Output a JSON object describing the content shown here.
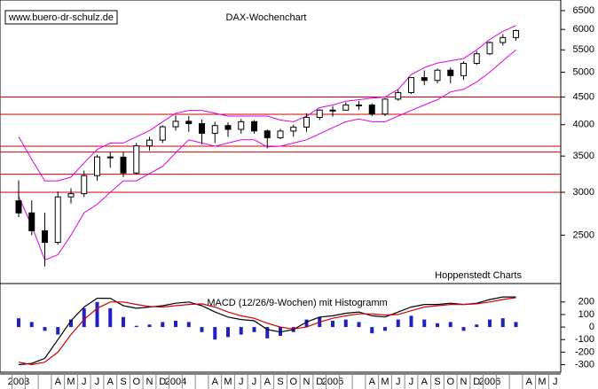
{
  "chart_data": [
    {
      "type": "candlestick",
      "title": "DAX-Wochenchart",
      "source": "www.buero-dr-schulz.de",
      "annotation": "Hoppenstedt Charts",
      "log_scale": true,
      "ylim": [
        2050,
        6800
      ],
      "yticks": [
        2500,
        3000,
        3500,
        4000,
        4500,
        5000,
        5500,
        6000,
        6500
      ],
      "categories": [
        "2003",
        null,
        null,
        "A",
        "M",
        "J",
        "J",
        "A",
        "S",
        "O",
        "N",
        "D",
        "2004",
        null,
        null,
        "A",
        "M",
        "J",
        "J",
        "A",
        "S",
        "O",
        "N",
        "D",
        "2005",
        null,
        null,
        "A",
        "M",
        "J",
        "J",
        "A",
        "S",
        "O",
        "N",
        "D",
        "2006",
        null,
        null,
        "A",
        "M",
        "J"
      ],
      "open": [
        2893,
        2748,
        2547,
        2424,
        2942,
        2982,
        3221,
        3487,
        3484,
        3257,
        3656,
        3746,
        3965,
        4058,
        4018,
        3857,
        3985,
        3921,
        4052,
        3895,
        3785,
        3893,
        3960,
        4126,
        4256,
        4255,
        4350,
        4349,
        4185,
        4460,
        4586,
        4887,
        4829,
        5044,
        4929,
        5193,
        5408,
        5674,
        5796,
        null,
        null,
        null
      ],
      "high": [
        3157,
        2900,
        2750,
        3010,
        3050,
        3290,
        3520,
        3560,
        3560,
        3700,
        3800,
        3990,
        4160,
        4150,
        4090,
        4050,
        4040,
        4100,
        4080,
        3920,
        3930,
        4000,
        4200,
        4270,
        4330,
        4400,
        4420,
        4380,
        4480,
        4640,
        4900,
        5040,
        5080,
        5100,
        5240,
        5470,
        5700,
        5880,
        6000,
        null,
        null,
        null
      ],
      "low": [
        2700,
        2500,
        2189,
        2400,
        2860,
        2940,
        3150,
        3330,
        3200,
        3240,
        3580,
        3700,
        3900,
        3880,
        3680,
        3700,
        3800,
        3850,
        3850,
        3618,
        3760,
        3800,
        3880,
        4080,
        4140,
        4250,
        4260,
        4150,
        4150,
        4430,
        4560,
        4730,
        4770,
        4770,
        4840,
        5160,
        5380,
        5600,
        5720,
        null,
        null,
        null
      ],
      "close": [
        2748,
        2547,
        2424,
        2942,
        2982,
        3221,
        3487,
        3484,
        3257,
        3656,
        3746,
        3965,
        4058,
        4018,
        3857,
        3985,
        3921,
        4052,
        3895,
        3785,
        3893,
        3960,
        4126,
        4256,
        4255,
        4350,
        4349,
        4185,
        4460,
        4586,
        4887,
        4829,
        5044,
        4929,
        5193,
        5408,
        5674,
        5796,
        5970,
        null,
        null,
        null
      ],
      "color": "#000000",
      "series": [
        {
          "color": "#e000e0",
          "values": [
            3800,
            3450,
            3150,
            3150,
            3200,
            3400,
            3600,
            3700,
            3700,
            3800,
            3900,
            4050,
            4200,
            4250,
            4250,
            4200,
            4150,
            4150,
            4150,
            4150,
            4080,
            4050,
            4150,
            4300,
            4350,
            4420,
            4450,
            4480,
            4500,
            4650,
            4950,
            5100,
            5200,
            5250,
            5300,
            5500,
            5750,
            5950,
            6100,
            null,
            null,
            null
          ]
        },
        {
          "color": "#e000e0",
          "values": [
            2950,
            2600,
            2250,
            2300,
            2500,
            2750,
            2850,
            3000,
            3150,
            3150,
            3250,
            3350,
            3550,
            3750,
            3700,
            3650,
            3700,
            3750,
            3750,
            3640,
            3650,
            3700,
            3750,
            3850,
            3950,
            4050,
            4100,
            4050,
            4050,
            4150,
            4250,
            4350,
            4450,
            4600,
            4650,
            4800,
            5000,
            5250,
            5500,
            null,
            null,
            null
          ]
        }
      ],
      "hlines": [
        4500,
        4180,
        3650,
        3560,
        3240,
        3000
      ],
      "hline_color": "#d00000"
    },
    {
      "type": "macd",
      "title": "MACD (12/26/9-Wochen) mit Histogramm",
      "ylim": [
        -360,
        340
      ],
      "yticks": [
        200,
        100,
        0,
        -100,
        -200,
        -300
      ],
      "series": [
        {
          "color": "#000000",
          "values": [
            -300,
            -290,
            -250,
            -100,
            50,
            160,
            230,
            230,
            170,
            150,
            160,
            170,
            190,
            200,
            170,
            120,
            80,
            60,
            50,
            -20,
            -40,
            -20,
            40,
            80,
            90,
            110,
            120,
            90,
            80,
            120,
            160,
            180,
            180,
            190,
            180,
            190,
            220,
            240,
            240,
            null,
            null,
            null
          ]
        },
        {
          "color": "#d00000",
          "values": [
            -280,
            -300,
            -280,
            -200,
            -60,
            60,
            150,
            200,
            200,
            180,
            165,
            160,
            170,
            180,
            185,
            160,
            120,
            90,
            70,
            30,
            0,
            -15,
            0,
            40,
            70,
            90,
            105,
            105,
            95,
            100,
            130,
            160,
            170,
            180,
            180,
            185,
            200,
            220,
            235,
            null,
            null,
            null
          ]
        }
      ],
      "histogram": [
        70,
        40,
        -30,
        -60,
        60,
        150,
        200,
        150,
        80,
        10,
        20,
        40,
        50,
        40,
        -40,
        -100,
        -80,
        -60,
        -40,
        -90,
        -70,
        -40,
        60,
        80,
        50,
        60,
        40,
        -50,
        -30,
        60,
        90,
        60,
        30,
        40,
        -30,
        20,
        60,
        70,
        40,
        null,
        null,
        null
      ],
      "histogram_color": "#2020c0"
    }
  ]
}
